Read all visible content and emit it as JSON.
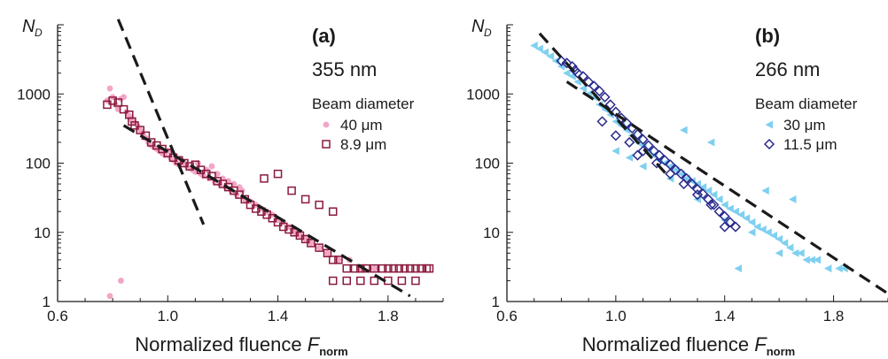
{
  "chart_data": [
    {
      "type": "scatter",
      "panel_label": "(a)",
      "wavelength": "355 nm",
      "ylabel": "N",
      "ylabel_sub": "D",
      "xlabel": "Normalized fluence ",
      "xlabel_var": "F",
      "xlabel_sub": "norm",
      "xlim": [
        0.6,
        2.0
      ],
      "ylim": [
        1,
        10000
      ],
      "yscale": "log",
      "x_ticks": [
        "0.6",
        "1.0",
        "1.4",
        "1.8"
      ],
      "x_tick_values": [
        0.6,
        1.0,
        1.4,
        1.8
      ],
      "y_ticks": [
        "1",
        "10",
        "100",
        "1000"
      ],
      "y_tick_values": [
        1,
        10,
        100,
        1000
      ],
      "legend": {
        "title": "Beam diameter",
        "placement": "right"
      },
      "series": [
        {
          "name": "40 μm",
          "marker": "filled-circle",
          "color": "#f2a6c8",
          "points": [
            [
              0.78,
              800
            ],
            [
              0.79,
              1200
            ],
            [
              0.8,
              900
            ],
            [
              0.81,
              700
            ],
            [
              0.82,
              600
            ],
            [
              0.83,
              850
            ],
            [
              0.84,
              900
            ],
            [
              0.85,
              550
            ],
            [
              0.86,
              480
            ],
            [
              0.87,
              420
            ],
            [
              0.88,
              380
            ],
            [
              0.89,
              350
            ],
            [
              0.9,
              300
            ],
            [
              0.91,
              260
            ],
            [
              0.92,
              230
            ],
            [
              0.93,
              200
            ],
            [
              0.94,
              180
            ],
            [
              0.95,
              170
            ],
            [
              0.96,
              160
            ],
            [
              0.97,
              150
            ],
            [
              0.98,
              140
            ],
            [
              0.99,
              130
            ],
            [
              1.0,
              150
            ],
            [
              1.01,
              120
            ],
            [
              1.02,
              110
            ],
            [
              1.03,
              100
            ],
            [
              1.04,
              95
            ],
            [
              1.05,
              110
            ],
            [
              1.06,
              100
            ],
            [
              1.07,
              90
            ],
            [
              1.08,
              85
            ],
            [
              1.09,
              80
            ],
            [
              1.1,
              75
            ],
            [
              1.11,
              100
            ],
            [
              1.12,
              70
            ],
            [
              1.13,
              65
            ],
            [
              1.14,
              80
            ],
            [
              1.15,
              60
            ],
            [
              1.16,
              90
            ],
            [
              1.17,
              55
            ],
            [
              1.18,
              70
            ],
            [
              1.19,
              50
            ],
            [
              1.2,
              60
            ],
            [
              1.21,
              45
            ],
            [
              1.22,
              55
            ],
            [
              1.23,
              40
            ],
            [
              1.24,
              50
            ],
            [
              1.25,
              35
            ],
            [
              1.26,
              45
            ],
            [
              1.27,
              40
            ],
            [
              1.28,
              30
            ],
            [
              1.3,
              28
            ],
            [
              1.32,
              25
            ],
            [
              1.34,
              22
            ],
            [
              1.36,
              20
            ],
            [
              1.38,
              18
            ],
            [
              1.4,
              15
            ],
            [
              1.42,
              14
            ],
            [
              1.44,
              12
            ],
            [
              1.46,
              10
            ],
            [
              1.48,
              9
            ],
            [
              1.5,
              8
            ],
            [
              1.52,
              7
            ],
            [
              1.55,
              6
            ],
            [
              1.58,
              5
            ],
            [
              1.62,
              4
            ],
            [
              1.66,
              4
            ],
            [
              1.7,
              3
            ],
            [
              1.75,
              3
            ],
            [
              0.79,
              1.2
            ],
            [
              0.83,
              2
            ]
          ]
        },
        {
          "name": "8.9 μm",
          "marker": "open-square",
          "color": "#8b1a3c",
          "points": [
            [
              0.78,
              700
            ],
            [
              0.8,
              800
            ],
            [
              0.82,
              750
            ],
            [
              0.84,
              600
            ],
            [
              0.86,
              500
            ],
            [
              0.87,
              400
            ],
            [
              0.88,
              350
            ],
            [
              0.9,
              300
            ],
            [
              0.92,
              250
            ],
            [
              0.94,
              200
            ],
            [
              0.96,
              180
            ],
            [
              0.98,
              160
            ],
            [
              1.0,
              140
            ],
            [
              1.02,
              120
            ],
            [
              1.04,
              110
            ],
            [
              1.06,
              100
            ],
            [
              1.08,
              90
            ],
            [
              1.1,
              95
            ],
            [
              1.12,
              80
            ],
            [
              1.14,
              70
            ],
            [
              1.16,
              65
            ],
            [
              1.18,
              55
            ],
            [
              1.2,
              50
            ],
            [
              1.22,
              45
            ],
            [
              1.24,
              40
            ],
            [
              1.26,
              35
            ],
            [
              1.28,
              30
            ],
            [
              1.3,
              25
            ],
            [
              1.32,
              22
            ],
            [
              1.34,
              20
            ],
            [
              1.36,
              18
            ],
            [
              1.38,
              16
            ],
            [
              1.4,
              14
            ],
            [
              1.42,
              12
            ],
            [
              1.44,
              11
            ],
            [
              1.46,
              10
            ],
            [
              1.48,
              9
            ],
            [
              1.5,
              8
            ],
            [
              1.52,
              7
            ],
            [
              1.55,
              6
            ],
            [
              1.58,
              5
            ],
            [
              1.6,
              4
            ],
            [
              1.62,
              4
            ],
            [
              1.65,
              3
            ],
            [
              1.68,
              3
            ],
            [
              1.7,
              3
            ],
            [
              1.72,
              3
            ],
            [
              1.75,
              3
            ],
            [
              1.78,
              3
            ],
            [
              1.8,
              3
            ],
            [
              1.82,
              3
            ],
            [
              1.84,
              3
            ],
            [
              1.86,
              3
            ],
            [
              1.88,
              3
            ],
            [
              1.9,
              3
            ],
            [
              1.92,
              3
            ],
            [
              1.94,
              3
            ],
            [
              1.95,
              3
            ],
            [
              1.6,
              2
            ],
            [
              1.65,
              2
            ],
            [
              1.7,
              2
            ],
            [
              1.75,
              2
            ],
            [
              1.8,
              2
            ],
            [
              1.85,
              2
            ],
            [
              1.9,
              2
            ],
            [
              1.35,
              60
            ],
            [
              1.4,
              70
            ],
            [
              1.45,
              40
            ],
            [
              1.5,
              30
            ],
            [
              1.55,
              25
            ],
            [
              1.6,
              20
            ]
          ]
        }
      ],
      "fit_lines": [
        {
          "points": [
            [
              0.82,
              12000
            ],
            [
              1.13,
              13
            ]
          ]
        },
        {
          "points": [
            [
              0.84,
              350
            ],
            [
              1.88,
              1.2
            ]
          ]
        }
      ]
    },
    {
      "type": "scatter",
      "panel_label": "(b)",
      "wavelength": "266 nm",
      "ylabel": "N",
      "ylabel_sub": "D",
      "xlabel": "Normalized fluence ",
      "xlabel_var": "F",
      "xlabel_sub": "norm",
      "xlim": [
        0.6,
        2.0
      ],
      "ylim": [
        1,
        10000
      ],
      "yscale": "log",
      "x_ticks": [
        "0.6",
        "1.0",
        "1.4",
        "1.8"
      ],
      "x_tick_values": [
        0.6,
        1.0,
        1.4,
        1.8
      ],
      "y_ticks": [
        "1",
        "10",
        "100",
        "1000"
      ],
      "y_tick_values": [
        1,
        10,
        100,
        1000
      ],
      "legend": {
        "title": "Beam diameter",
        "placement": "right"
      },
      "series": [
        {
          "name": "30 μm",
          "marker": "filled-triangle-left",
          "color": "#7fd0f0",
          "points": [
            [
              0.7,
              5000
            ],
            [
              0.72,
              4500
            ],
            [
              0.74,
              4000
            ],
            [
              0.76,
              3500
            ],
            [
              0.78,
              3000
            ],
            [
              0.8,
              2500
            ],
            [
              0.82,
              2000
            ],
            [
              0.84,
              1800
            ],
            [
              0.86,
              1500
            ],
            [
              0.88,
              1200
            ],
            [
              0.9,
              1000
            ],
            [
              0.92,
              900
            ],
            [
              0.94,
              700
            ],
            [
              0.96,
              600
            ],
            [
              0.98,
              500
            ],
            [
              1.0,
              400
            ],
            [
              1.02,
              350
            ],
            [
              1.04,
              300
            ],
            [
              1.06,
              250
            ],
            [
              1.08,
              200
            ],
            [
              1.1,
              180
            ],
            [
              1.12,
              150
            ],
            [
              1.14,
              130
            ],
            [
              1.16,
              110
            ],
            [
              1.18,
              100
            ],
            [
              1.2,
              90
            ],
            [
              1.22,
              80
            ],
            [
              1.24,
              70
            ],
            [
              1.26,
              60
            ],
            [
              1.28,
              55
            ],
            [
              1.3,
              50
            ],
            [
              1.32,
              45
            ],
            [
              1.34,
              40
            ],
            [
              1.36,
              35
            ],
            [
              1.38,
              30
            ],
            [
              1.4,
              25
            ],
            [
              1.42,
              22
            ],
            [
              1.44,
              20
            ],
            [
              1.46,
              18
            ],
            [
              1.48,
              16
            ],
            [
              1.5,
              14
            ],
            [
              1.52,
              12
            ],
            [
              1.54,
              11
            ],
            [
              1.56,
              10
            ],
            [
              1.58,
              9
            ],
            [
              1.6,
              8
            ],
            [
              1.62,
              7
            ],
            [
              1.64,
              6
            ],
            [
              1.66,
              5
            ],
            [
              1.68,
              5
            ],
            [
              1.7,
              4
            ],
            [
              1.72,
              4
            ],
            [
              1.74,
              4
            ],
            [
              1.78,
              3
            ],
            [
              1.82,
              3
            ],
            [
              1.84,
              3
            ],
            [
              1.0,
              150
            ],
            [
              1.05,
              120
            ],
            [
              1.1,
              90
            ],
            [
              1.2,
              60
            ],
            [
              1.3,
              30
            ],
            [
              1.4,
              15
            ],
            [
              1.5,
              10
            ],
            [
              1.6,
              5
            ],
            [
              1.45,
              3
            ],
            [
              1.25,
              300
            ],
            [
              1.35,
              200
            ],
            [
              1.55,
              40
            ],
            [
              1.65,
              30
            ]
          ]
        },
        {
          "name": "11.5 μm",
          "marker": "open-diamond",
          "color": "#2a2a8c",
          "points": [
            [
              0.8,
              3000
            ],
            [
              0.82,
              2800
            ],
            [
              0.84,
              2500
            ],
            [
              0.85,
              2200
            ],
            [
              0.86,
              2000
            ],
            [
              0.88,
              1800
            ],
            [
              0.9,
              1500
            ],
            [
              0.92,
              1300
            ],
            [
              0.94,
              1100
            ],
            [
              0.96,
              900
            ],
            [
              0.98,
              700
            ],
            [
              1.0,
              550
            ],
            [
              1.02,
              450
            ],
            [
              1.04,
              380
            ],
            [
              1.06,
              320
            ],
            [
              1.08,
              260
            ],
            [
              1.1,
              220
            ],
            [
              1.12,
              180
            ],
            [
              1.14,
              150
            ],
            [
              1.16,
              130
            ],
            [
              1.18,
              110
            ],
            [
              1.2,
              95
            ],
            [
              1.22,
              80
            ],
            [
              1.24,
              70
            ],
            [
              1.26,
              60
            ],
            [
              1.28,
              50
            ],
            [
              1.3,
              42
            ],
            [
              1.32,
              36
            ],
            [
              1.34,
              30
            ],
            [
              1.36,
              25
            ],
            [
              1.38,
              20
            ],
            [
              1.4,
              17
            ],
            [
              1.42,
              14
            ],
            [
              1.44,
              12
            ],
            [
              1.0,
              250
            ],
            [
              1.05,
              200
            ],
            [
              1.1,
              150
            ],
            [
              1.15,
              100
            ],
            [
              1.2,
              70
            ],
            [
              1.25,
              50
            ],
            [
              1.3,
              35
            ],
            [
              1.35,
              25
            ],
            [
              1.4,
              12
            ],
            [
              0.95,
              400
            ],
            [
              1.08,
              130
            ]
          ]
        }
      ],
      "fit_lines": [
        {
          "points": [
            [
              0.72,
              7500
            ],
            [
              1.2,
              60
            ]
          ]
        },
        {
          "points": [
            [
              0.82,
              1500
            ],
            [
              2.0,
              1.3
            ]
          ]
        }
      ]
    }
  ]
}
